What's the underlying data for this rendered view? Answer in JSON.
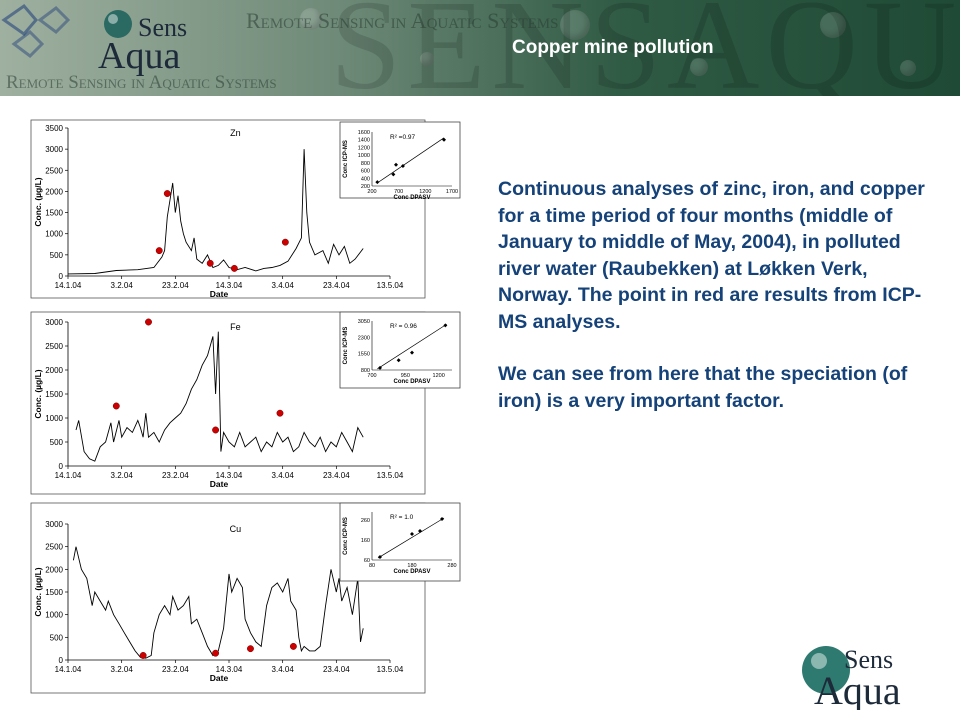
{
  "header": {
    "title": "Copper mine pollution",
    "brand_top": "Sens",
    "brand_bottom": "Aqua",
    "tagline": "Remote Sensing in Aquatic Systems"
  },
  "description": {
    "paragraph1": "Continuous analyses of zinc, iron, and copper for a time period of four months (middle of January to middle of May, 2004), in polluted river water (Raubekken) at Løkken Verk, Norway. The point in red are results from ICP-MS analyses.",
    "paragraph2": "We can see from here that the speciation (of iron) is a very important factor."
  },
  "logo": {
    "top": "Sens",
    "bottom": "Aqua"
  },
  "colors": {
    "text": "#154278",
    "icp_point": "#cc0000",
    "line": "#000000",
    "banner": "#2f5a44"
  },
  "chart_data": [
    {
      "type": "line",
      "title": "Zn",
      "xlabel": "Date",
      "ylabel": "Conc. (µg/L)",
      "xticks": [
        "14.1.04",
        "3.2.04",
        "23.2.04",
        "14.3.04",
        "3.4.04",
        "23.4.04",
        "13.5.04"
      ],
      "xlim": [
        0,
        120
      ],
      "ylim": [
        0,
        3500
      ],
      "yticks": [
        0,
        500,
        1000,
        1500,
        2000,
        2500,
        3000,
        3500
      ],
      "series": [
        {
          "kind": "line",
          "points": [
            [
              0,
              50
            ],
            [
              10,
              60
            ],
            [
              18,
              130
            ],
            [
              26,
              150
            ],
            [
              32,
              200
            ],
            [
              35,
              450
            ],
            [
              36,
              600
            ],
            [
              37,
              1400
            ],
            [
              38,
              1800
            ],
            [
              39,
              2200
            ],
            [
              40,
              1500
            ],
            [
              41,
              1900
            ],
            [
              42,
              1300
            ],
            [
              43,
              1000
            ],
            [
              44,
              800
            ],
            [
              46,
              600
            ],
            [
              47,
              900
            ],
            [
              48,
              400
            ],
            [
              50,
              300
            ],
            [
              52,
              500
            ],
            [
              54,
              200
            ],
            [
              56,
              250
            ],
            [
              58,
              380
            ],
            [
              60,
              200
            ],
            [
              63,
              150
            ],
            [
              66,
              200
            ],
            [
              70,
              120
            ],
            [
              73,
              180
            ],
            [
              76,
              200
            ],
            [
              79,
              250
            ],
            [
              82,
              350
            ],
            [
              85,
              650
            ],
            [
              87,
              900
            ],
            [
              88,
              3000
            ],
            [
              89,
              1500
            ],
            [
              90,
              800
            ],
            [
              92,
              500
            ],
            [
              95,
              600
            ],
            [
              97,
              300
            ],
            [
              99,
              750
            ],
            [
              101,
              500
            ],
            [
              103,
              700
            ],
            [
              105,
              300
            ],
            [
              107,
              400
            ],
            [
              110,
              650
            ]
          ]
        },
        {
          "kind": "scatter",
          "points": [
            [
              34,
              600
            ],
            [
              37,
              1950
            ],
            [
              53,
              300
            ],
            [
              62,
              180
            ],
            [
              81,
              800
            ]
          ]
        }
      ],
      "inset": {
        "xlabel": "Conc DPASV",
        "ylabel": "Conc ICP-MS",
        "r2": "R² =0.97",
        "xlim": [
          200,
          1700
        ],
        "ylim": [
          200,
          1600
        ],
        "xticks": [
          200,
          700,
          1200,
          1700
        ],
        "yticks": [
          200,
          400,
          600,
          800,
          1000,
          1200,
          1400,
          1600
        ],
        "points": [
          [
            300,
            300
          ],
          [
            600,
            500
          ],
          [
            650,
            750
          ],
          [
            780,
            720
          ],
          [
            1550,
            1400
          ]
        ],
        "fit": [
          [
            300,
            280
          ],
          [
            1550,
            1450
          ]
        ]
      }
    },
    {
      "type": "line",
      "title": "Fe",
      "xlabel": "Date",
      "ylabel": "Conc. (µg/L)",
      "xticks": [
        "14.1.04",
        "3.2.04",
        "23.2.04",
        "14.3.04",
        "3.4.04",
        "23.4.04",
        "13.5.04"
      ],
      "xlim": [
        0,
        120
      ],
      "ylim": [
        0,
        3000
      ],
      "yticks": [
        0,
        500,
        1000,
        1500,
        2000,
        2500,
        3000
      ],
      "series": [
        {
          "kind": "line",
          "points": [
            [
              3,
              750
            ],
            [
              4,
              950
            ],
            [
              6,
              300
            ],
            [
              8,
              150
            ],
            [
              10,
              100
            ],
            [
              12,
              400
            ],
            [
              14,
              500
            ],
            [
              16,
              900
            ],
            [
              17,
              500
            ],
            [
              19,
              950
            ],
            [
              20,
              600
            ],
            [
              22,
              800
            ],
            [
              24,
              700
            ],
            [
              26,
              950
            ],
            [
              27,
              800
            ],
            [
              28,
              600
            ],
            [
              29,
              1100
            ],
            [
              30,
              600
            ],
            [
              32,
              700
            ],
            [
              34,
              500
            ],
            [
              36,
              750
            ],
            [
              38,
              900
            ],
            [
              40,
              1000
            ],
            [
              42,
              1100
            ],
            [
              44,
              1300
            ],
            [
              46,
              1600
            ],
            [
              48,
              1800
            ],
            [
              50,
              2100
            ],
            [
              52,
              2300
            ],
            [
              54,
              2700
            ],
            [
              55,
              1500
            ],
            [
              56,
              2800
            ],
            [
              57,
              300
            ],
            [
              58,
              700
            ],
            [
              60,
              500
            ],
            [
              62,
              400
            ],
            [
              64,
              700
            ],
            [
              66,
              400
            ],
            [
              68,
              500
            ],
            [
              70,
              600
            ],
            [
              72,
              300
            ],
            [
              74,
              500
            ],
            [
              76,
              400
            ],
            [
              78,
              700
            ],
            [
              80,
              500
            ],
            [
              82,
              600
            ],
            [
              84,
              300
            ],
            [
              86,
              400
            ],
            [
              88,
              700
            ],
            [
              90,
              500
            ],
            [
              92,
              400
            ],
            [
              94,
              600
            ],
            [
              96,
              300
            ],
            [
              98,
              500
            ],
            [
              100,
              400
            ],
            [
              102,
              700
            ],
            [
              104,
              500
            ],
            [
              106,
              300
            ],
            [
              108,
              800
            ],
            [
              110,
              600
            ]
          ]
        },
        {
          "kind": "scatter",
          "points": [
            [
              18,
              1250
            ],
            [
              30,
              3000
            ],
            [
              55,
              750
            ],
            [
              79,
              1100
            ]
          ]
        }
      ],
      "inset": {
        "xlabel": "Conc DPASV",
        "ylabel": "Conc ICP-MS",
        "r2": "R² = 0.96",
        "xlim": [
          700,
          1300
        ],
        "ylim": [
          800,
          3050
        ],
        "xticks": [
          700,
          950,
          1200
        ],
        "yticks": [
          800,
          1550,
          2300,
          3050
        ],
        "points": [
          [
            760,
            900
          ],
          [
            900,
            1250
          ],
          [
            1000,
            1600
          ],
          [
            1250,
            2850
          ]
        ],
        "fit": [
          [
            740,
            850
          ],
          [
            1260,
            2900
          ]
        ]
      }
    },
    {
      "type": "line",
      "title": "Cu",
      "xlabel": "Date",
      "ylabel": "Conc. (µg/L)",
      "xticks": [
        "14.1.04",
        "3.2.04",
        "23.2.04",
        "14.3.04",
        "3.4.04",
        "23.4.04",
        "13.5.04"
      ],
      "xlim": [
        0,
        120
      ],
      "ylim": [
        0,
        3000
      ],
      "yticks": [
        0,
        500,
        1000,
        1500,
        2000,
        2500,
        3000
      ],
      "series": [
        {
          "kind": "line",
          "points": [
            [
              2,
              2200
            ],
            [
              3,
              2500
            ],
            [
              5,
              2000
            ],
            [
              7,
              1800
            ],
            [
              9,
              1200
            ],
            [
              10,
              1500
            ],
            [
              12,
              1300
            ],
            [
              14,
              1100
            ],
            [
              15,
              1300
            ],
            [
              17,
              1000
            ],
            [
              19,
              800
            ],
            [
              21,
              600
            ],
            [
              23,
              400
            ],
            [
              25,
              200
            ],
            [
              27,
              60
            ],
            [
              29,
              40
            ],
            [
              31,
              100
            ],
            [
              32,
              600
            ],
            [
              34,
              1000
            ],
            [
              36,
              1200
            ],
            [
              38,
              1000
            ],
            [
              39,
              1400
            ],
            [
              41,
              1100
            ],
            [
              43,
              1200
            ],
            [
              45,
              1400
            ],
            [
              46,
              800
            ],
            [
              48,
              900
            ],
            [
              50,
              600
            ],
            [
              52,
              300
            ],
            [
              54,
              100
            ],
            [
              56,
              200
            ],
            [
              58,
              700
            ],
            [
              60,
              1900
            ],
            [
              61,
              1500
            ],
            [
              63,
              1800
            ],
            [
              65,
              1600
            ],
            [
              66,
              900
            ],
            [
              68,
              600
            ],
            [
              70,
              400
            ],
            [
              72,
              300
            ],
            [
              74,
              1200
            ],
            [
              76,
              1600
            ],
            [
              78,
              1700
            ],
            [
              80,
              1500
            ],
            [
              82,
              1800
            ],
            [
              83,
              1300
            ],
            [
              85,
              1100
            ],
            [
              86,
              500
            ],
            [
              87,
              200
            ],
            [
              88,
              300
            ],
            [
              90,
              200
            ],
            [
              92,
              200
            ],
            [
              94,
              300
            ],
            [
              96,
              1200
            ],
            [
              98,
              2000
            ],
            [
              100,
              1500
            ],
            [
              101,
              1800
            ],
            [
              102,
              1300
            ],
            [
              104,
              1600
            ],
            [
              106,
              1000
            ],
            [
              108,
              1800
            ],
            [
              109,
              400
            ],
            [
              110,
              700
            ]
          ]
        },
        {
          "kind": "scatter",
          "points": [
            [
              28,
              100
            ],
            [
              55,
              150
            ],
            [
              68,
              250
            ],
            [
              84,
              300
            ]
          ]
        }
      ],
      "inset": {
        "xlabel": "Conc DPASV",
        "ylabel": "Conc ICP-MS",
        "r2": "R² = 1.0",
        "xlim": [
          80,
          280
        ],
        "ylim": [
          60,
          300
        ],
        "xticks": [
          80,
          180,
          280
        ],
        "yticks": [
          60,
          160,
          260
        ],
        "points": [
          [
            100,
            75
          ],
          [
            180,
            190
          ],
          [
            200,
            205
          ],
          [
            255,
            265
          ]
        ],
        "fit": [
          [
            95,
            70
          ],
          [
            260,
            270
          ]
        ]
      }
    }
  ]
}
